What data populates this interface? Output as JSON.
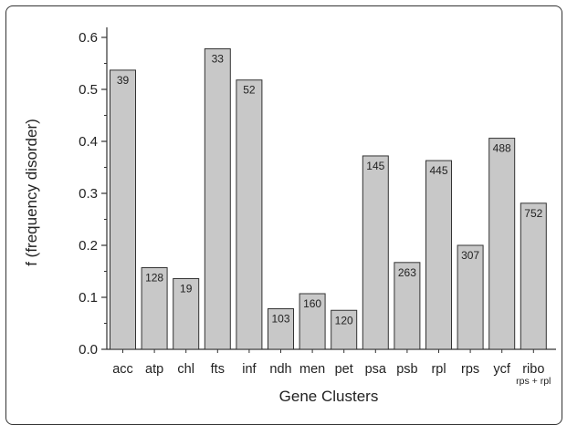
{
  "chart_data": {
    "type": "bar",
    "title": "",
    "xlabel": "Gene Clusters",
    "ylabel": "f (frequency disorder)",
    "ylim": [
      0,
      0.62
    ],
    "yticks": [
      "0.0",
      "0.1",
      "0.2",
      "0.3",
      "0.4",
      "0.5",
      "0.6"
    ],
    "categories": [
      "acc",
      "atp",
      "chl",
      "fts",
      "inf",
      "ndh",
      "men",
      "pet",
      "psa",
      "psb",
      "rpl",
      "rps",
      "ycf",
      "ribo"
    ],
    "category_sublabels": {
      "ribo": "rps + rpl"
    },
    "values": [
      0.537,
      0.157,
      0.136,
      0.578,
      0.518,
      0.078,
      0.107,
      0.075,
      0.372,
      0.167,
      0.363,
      0.2,
      0.406,
      0.281
    ],
    "bar_labels": [
      "39",
      "128",
      "19",
      "33",
      "52",
      "103",
      "160",
      "120",
      "145",
      "263",
      "445",
      "307",
      "488",
      "752"
    ],
    "grid": false,
    "bar_color": "#c8c8c8",
    "edge_color": "#333333"
  }
}
